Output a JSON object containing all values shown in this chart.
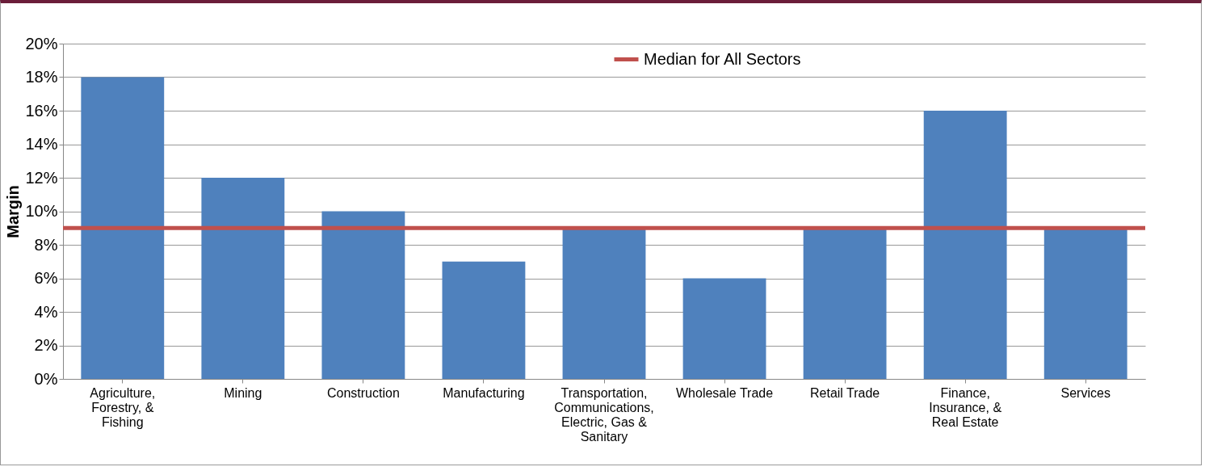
{
  "chart_data": {
    "type": "bar",
    "ylabel": "Margin",
    "categories": [
      "Agriculture, Forestry, & Fishing",
      "Mining",
      "Construction",
      "Manufacturing",
      "Transportation, Communications, Electric, Gas & Sanitary",
      "Wholesale Trade",
      "Retail Trade",
      "Finance, Insurance, & Real Estate",
      "Services"
    ],
    "values": [
      18,
      12,
      10,
      7,
      9,
      6,
      9,
      16,
      9
    ],
    "color": "#4f81bd",
    "ylim": [
      0,
      20
    ],
    "yticks": [
      {
        "value": 0,
        "label": "0%"
      },
      {
        "value": 2,
        "label": "2%"
      },
      {
        "value": 4,
        "label": "4%"
      },
      {
        "value": 6,
        "label": "6%"
      },
      {
        "value": 8,
        "label": "8%"
      },
      {
        "value": 10,
        "label": "10%"
      },
      {
        "value": 12,
        "label": "12%"
      },
      {
        "value": 14,
        "label": "14%"
      },
      {
        "value": 16,
        "label": "16%"
      },
      {
        "value": 18,
        "label": "18%"
      },
      {
        "value": 20,
        "label": "20%"
      }
    ],
    "ref_lines": [
      {
        "axis": "y",
        "value": 9,
        "label": "Median for All Sectors",
        "color": "#c0504d"
      }
    ],
    "grid": "y",
    "legend": "top"
  }
}
